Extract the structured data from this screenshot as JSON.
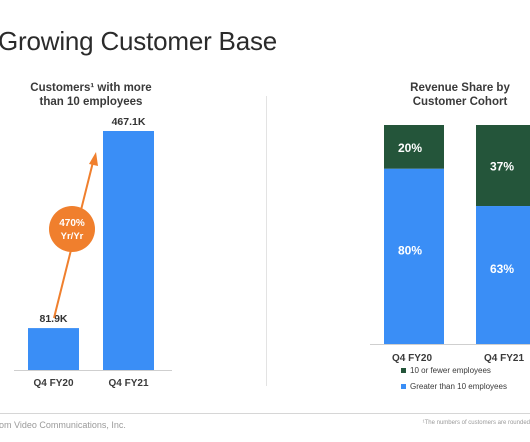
{
  "header": {
    "title": "Growing Customer Base"
  },
  "footer": {
    "left": "om Video Communications, Inc.",
    "right": "¹The numbers of customers are rounded"
  },
  "chart_data": [
    {
      "type": "bar",
      "title": "Customers¹ with more than 10 employees",
      "title_lines": [
        "Customers¹ with more",
        "than 10 employees"
      ],
      "categories": [
        "Q4 FY20",
        "Q4 FY21"
      ],
      "values": [
        81.9,
        467.1
      ],
      "value_labels": [
        "81.9K",
        "467.1K"
      ],
      "unit": "K",
      "ylim": [
        0,
        467.1
      ],
      "annotation": {
        "lines": [
          "470%",
          "Yr/Yr"
        ],
        "color": "#f07f2d"
      },
      "bar_color": "#3a8ef6",
      "grid": false
    },
    {
      "type": "bar",
      "stacked": true,
      "percent": true,
      "title": "Revenue Share by Customer Cohort",
      "title_lines": [
        "Revenue Share by",
        "Customer Cohort"
      ],
      "categories": [
        "Q4 FY20",
        "Q4 FY21"
      ],
      "series": [
        {
          "name": "Greater than 10 employees",
          "values": [
            80,
            63
          ],
          "labels": [
            "80%",
            "63%"
          ],
          "color": "#3a8ef6"
        },
        {
          "name": "10 or fewer employees",
          "values": [
            20,
            37
          ],
          "labels": [
            "20%",
            "37%"
          ],
          "color": "#24553a"
        }
      ],
      "legend": [
        "10 or fewer employees",
        "Greater than 10 employees"
      ],
      "legend_position": "bottom",
      "ylim": [
        0,
        100
      ],
      "grid": false
    }
  ]
}
